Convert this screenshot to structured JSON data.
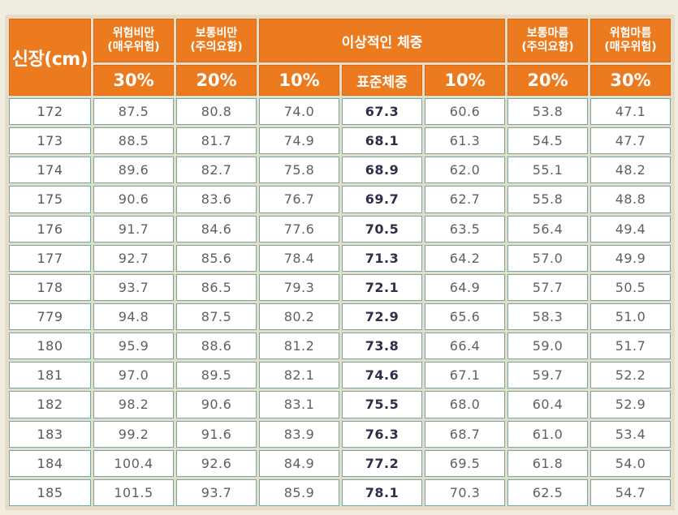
{
  "table": {
    "header": {
      "height_label": "신장(cm)",
      "severe_obese": [
        "위험비만",
        "(매우위험)"
      ],
      "obese": [
        "보통비만",
        "(주의요함)"
      ],
      "ideal": "이상적인 체중",
      "thin": [
        "보통마름",
        "(주의요함)"
      ],
      "severe_thin": [
        "위험마름",
        "(매우위험)"
      ]
    },
    "subheader": [
      "30%",
      "20%",
      "10%",
      "표준체중",
      "10%",
      "20%",
      "30%"
    ],
    "rows": [
      {
        "height": "172",
        "values": [
          "87.5",
          "80.8",
          "74.0",
          "67.3",
          "60.6",
          "53.8",
          "47.1"
        ]
      },
      {
        "height": "173",
        "values": [
          "88.5",
          "81.7",
          "74.9",
          "68.1",
          "61.3",
          "54.5",
          "47.7"
        ]
      },
      {
        "height": "174",
        "values": [
          "89.6",
          "82.7",
          "75.8",
          "68.9",
          "62.0",
          "55.1",
          "48.2"
        ]
      },
      {
        "height": "175",
        "values": [
          "90.6",
          "83.6",
          "76.7",
          "69.7",
          "62.7",
          "55.8",
          "48.8"
        ]
      },
      {
        "height": "176",
        "values": [
          "91.7",
          "84.6",
          "77.6",
          "70.5",
          "63.5",
          "56.4",
          "49.4"
        ]
      },
      {
        "height": "177",
        "values": [
          "92.7",
          "85.6",
          "78.4",
          "71.3",
          "64.2",
          "57.0",
          "49.9"
        ]
      },
      {
        "height": "178",
        "values": [
          "93.7",
          "86.5",
          "79.3",
          "72.1",
          "64.9",
          "57.7",
          "50.5"
        ]
      },
      {
        "height": "779",
        "values": [
          "94.8",
          "87.5",
          "80.2",
          "72.9",
          "65.6",
          "58.3",
          "51.0"
        ]
      },
      {
        "height": "180",
        "values": [
          "95.9",
          "88.6",
          "81.2",
          "73.8",
          "66.4",
          "59.0",
          "51.7"
        ]
      },
      {
        "height": "181",
        "values": [
          "97.0",
          "89.5",
          "82.1",
          "74.6",
          "67.1",
          "59.7",
          "52.2"
        ]
      },
      {
        "height": "182",
        "values": [
          "98.2",
          "90.6",
          "83.1",
          "75.5",
          "68.0",
          "60.4",
          "52.9"
        ]
      },
      {
        "height": "183",
        "values": [
          "99.2",
          "91.6",
          "83.9",
          "76.3",
          "68.7",
          "61.0",
          "53.4"
        ]
      },
      {
        "height": "184",
        "values": [
          "100.4",
          "92.6",
          "84.9",
          "77.2",
          "69.5",
          "61.8",
          "54.0"
        ]
      },
      {
        "height": "185",
        "values": [
          "101.5",
          "93.7",
          "85.9",
          "78.1",
          "70.3",
          "62.5",
          "54.7"
        ]
      }
    ]
  }
}
